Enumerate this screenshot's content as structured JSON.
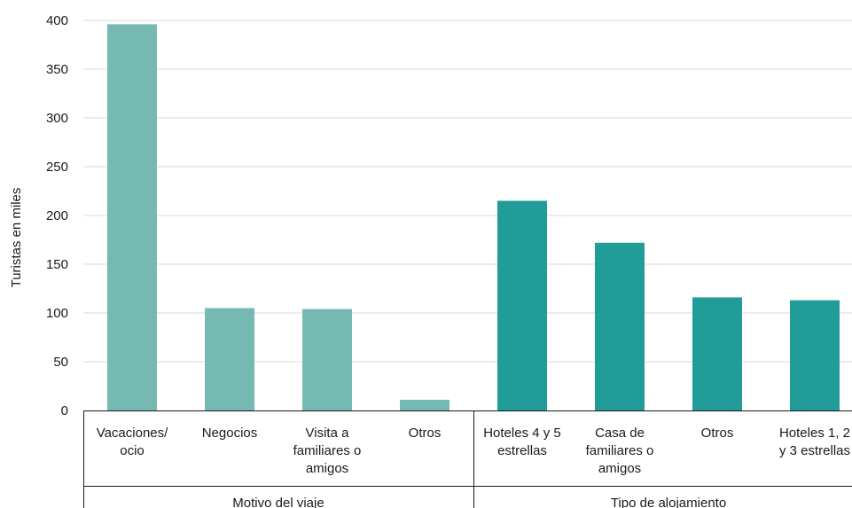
{
  "chart_data": {
    "type": "bar",
    "ylabel": "Turistas en miles",
    "ylim": [
      0,
      400
    ],
    "yticks": [
      0,
      50,
      100,
      150,
      200,
      250,
      300,
      350,
      400
    ],
    "grid": true,
    "groups": [
      {
        "name": "Motivo del viaje",
        "color": "#76b9b3",
        "categories": [
          {
            "label": [
              "Vacaciones/",
              "ocio"
            ],
            "value": 396
          },
          {
            "label": [
              "Negocios"
            ],
            "value": 105
          },
          {
            "label": [
              "Visita a",
              "familiares o",
              "amigos"
            ],
            "value": 104
          },
          {
            "label": [
              "Otros"
            ],
            "value": 11
          }
        ]
      },
      {
        "name": "Tipo de alojamiento",
        "color": "#229c98",
        "categories": [
          {
            "label": [
              "Hoteles 4 y 5",
              "estrellas"
            ],
            "value": 215
          },
          {
            "label": [
              "Casa de",
              "familiares o",
              "amigos"
            ],
            "value": 172
          },
          {
            "label": [
              "Otros"
            ],
            "value": 116
          },
          {
            "label": [
              "Hoteles 1, 2",
              "y 3 estrellas"
            ],
            "value": 113
          }
        ]
      }
    ]
  }
}
